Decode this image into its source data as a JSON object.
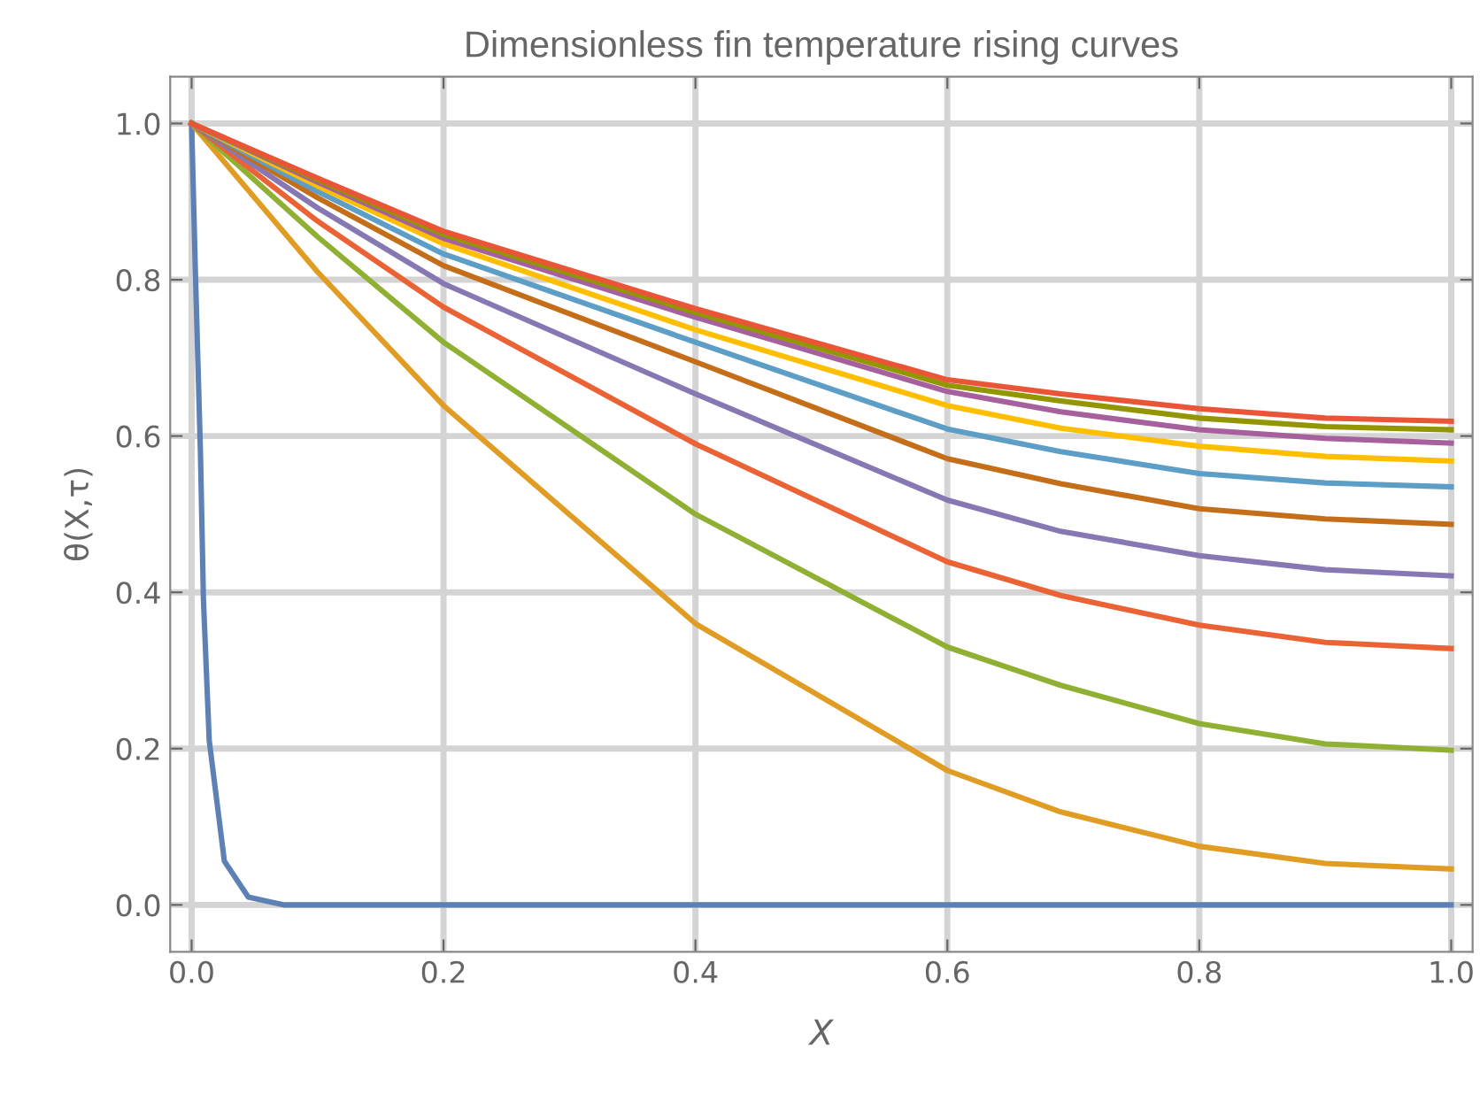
{
  "chart_data": {
    "type": "line",
    "title": "Dimensionless fin temperature rising curves",
    "xlabel": "X",
    "ylabel": "θ(X,τ)",
    "xlim": [
      -0.017,
      1.017
    ],
    "ylim": [
      -0.06,
      1.06
    ],
    "xticks": [
      {
        "value": 0,
        "label": "0.0"
      },
      {
        "value": 0.2,
        "label": "0.2"
      },
      {
        "value": 0.4,
        "label": "0.4"
      },
      {
        "value": 0.6,
        "label": "0.6"
      },
      {
        "value": 0.8,
        "label": "0.8"
      },
      {
        "value": 1.0,
        "label": "1.0"
      }
    ],
    "yticks": [
      {
        "value": 0,
        "label": "0.0"
      },
      {
        "value": 0.2,
        "label": "0.2"
      },
      {
        "value": 0.4,
        "label": "0.4"
      },
      {
        "value": 0.6,
        "label": "0.6"
      },
      {
        "value": 0.8,
        "label": "0.8"
      },
      {
        "value": 1.0,
        "label": "1.0"
      }
    ],
    "grid": true,
    "marker": "none",
    "line_style": "solid",
    "series": [
      {
        "color": "#5e81b5",
        "x": [
          0,
          0.003,
          0.007,
          0.0094,
          0.014,
          0.026,
          0.045,
          0.073,
          0.5,
          1.0
        ],
        "values": [
          1.0,
          0.81,
          0.58,
          0.39,
          0.21,
          0.056,
          0.01,
          0.0,
          0.0,
          0.0
        ]
      },
      {
        "color": "#e19c24",
        "x": [
          0,
          0.1,
          0.2,
          0.4,
          0.6,
          0.69,
          0.8,
          0.9,
          1.0
        ],
        "values": [
          1.0,
          0.81,
          0.639,
          0.36,
          0.172,
          0.119,
          0.075,
          0.053,
          0.046
        ]
      },
      {
        "color": "#8fb032",
        "x": [
          0,
          0.1,
          0.2,
          0.4,
          0.6,
          0.69,
          0.8,
          0.9,
          1.0
        ],
        "values": [
          1.0,
          0.855,
          0.72,
          0.5,
          0.33,
          0.281,
          0.232,
          0.206,
          0.198
        ]
      },
      {
        "color": "#eb6235",
        "x": [
          0,
          0.1,
          0.2,
          0.4,
          0.6,
          0.69,
          0.8,
          0.9,
          1.0
        ],
        "values": [
          1.0,
          0.875,
          0.765,
          0.59,
          0.439,
          0.396,
          0.358,
          0.336,
          0.328
        ]
      },
      {
        "color": "#8778b3",
        "x": [
          0,
          0.1,
          0.2,
          0.4,
          0.6,
          0.69,
          0.8,
          0.9,
          1.0
        ],
        "values": [
          1.0,
          0.892,
          0.795,
          0.654,
          0.518,
          0.478,
          0.447,
          0.429,
          0.421
        ]
      },
      {
        "color": "#c56e1a",
        "x": [
          0,
          0.1,
          0.2,
          0.4,
          0.6,
          0.69,
          0.8,
          0.9,
          1.0
        ],
        "values": [
          1.0,
          0.905,
          0.818,
          0.695,
          0.571,
          0.539,
          0.507,
          0.494,
          0.487
        ]
      },
      {
        "color": "#5d9ec7",
        "x": [
          0,
          0.1,
          0.2,
          0.4,
          0.6,
          0.69,
          0.8,
          0.9,
          1.0
        ],
        "values": [
          1.0,
          0.913,
          0.833,
          0.72,
          0.609,
          0.58,
          0.552,
          0.54,
          0.535
        ]
      },
      {
        "color": "#ffbf00",
        "x": [
          0,
          0.1,
          0.2,
          0.4,
          0.6,
          0.69,
          0.8,
          0.9,
          1.0
        ],
        "values": [
          1.0,
          0.92,
          0.846,
          0.736,
          0.639,
          0.61,
          0.587,
          0.574,
          0.568
        ]
      },
      {
        "color": "#a5609d",
        "x": [
          0,
          0.1,
          0.2,
          0.4,
          0.6,
          0.69,
          0.8,
          0.9,
          1.0
        ],
        "values": [
          1.0,
          0.925,
          0.853,
          0.752,
          0.657,
          0.631,
          0.608,
          0.597,
          0.591
        ]
      },
      {
        "color": "#929600",
        "x": [
          0,
          0.1,
          0.2,
          0.4,
          0.6,
          0.69,
          0.8,
          0.9,
          1.0
        ],
        "values": [
          1.0,
          0.928,
          0.858,
          0.758,
          0.665,
          0.645,
          0.623,
          0.612,
          0.608
        ]
      },
      {
        "color": "#e95536",
        "x": [
          0,
          0.1,
          0.2,
          0.4,
          0.6,
          0.69,
          0.8,
          0.9,
          1.0
        ],
        "values": [
          1.0,
          0.93,
          0.862,
          0.763,
          0.672,
          0.654,
          0.635,
          0.623,
          0.619
        ]
      }
    ]
  }
}
